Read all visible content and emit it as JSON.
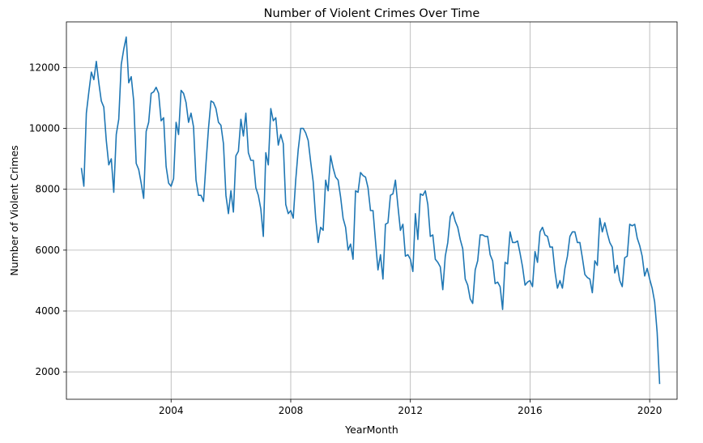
{
  "chart_data": {
    "type": "line",
    "title": "Number of Violent Crimes Over Time",
    "xlabel": "YearMonth",
    "ylabel": "Number of Violent Crimes",
    "x_ticks": [
      "2004",
      "2008",
      "2012",
      "2016",
      "2020"
    ],
    "y_ticks": [
      "2000",
      "4000",
      "6000",
      "8000",
      "10000",
      "12000"
    ],
    "xlim": [
      "2000-07",
      "2020-12"
    ],
    "ylim": [
      1100,
      13500
    ],
    "grid": true,
    "line_color": "#1f77b4",
    "series": [
      {
        "x": [
          "2001-01",
          "2001-02",
          "2001-03",
          "2001-04",
          "2001-05",
          "2001-06",
          "2001-07",
          "2001-08",
          "2001-09",
          "2001-10",
          "2001-11",
          "2001-12",
          "2002-01",
          "2002-02",
          "2002-03",
          "2002-04",
          "2002-05",
          "2002-06",
          "2002-07",
          "2002-08",
          "2002-09",
          "2002-10",
          "2002-11",
          "2002-12",
          "2003-01",
          "2003-02",
          "2003-03",
          "2003-04",
          "2003-05",
          "2003-06",
          "2003-07",
          "2003-08",
          "2003-09",
          "2003-10",
          "2003-11",
          "2003-12",
          "2004-01",
          "2004-02",
          "2004-03",
          "2004-04",
          "2004-05",
          "2004-06",
          "2004-07",
          "2004-08",
          "2004-09",
          "2004-10",
          "2004-11",
          "2004-12",
          "2005-01",
          "2005-02",
          "2005-03",
          "2005-04",
          "2005-05",
          "2005-06",
          "2005-07",
          "2005-08",
          "2005-09",
          "2005-10",
          "2005-11",
          "2005-12",
          "2006-01",
          "2006-02",
          "2006-03",
          "2006-04",
          "2006-05",
          "2006-06",
          "2006-07",
          "2006-08",
          "2006-09",
          "2006-10",
          "2006-11",
          "2006-12",
          "2007-01",
          "2007-02",
          "2007-03",
          "2007-04",
          "2007-05",
          "2007-06",
          "2007-07",
          "2007-08",
          "2007-09",
          "2007-10",
          "2007-11",
          "2007-12",
          "2008-01",
          "2008-02",
          "2008-03",
          "2008-04",
          "2008-05",
          "2008-06",
          "2008-07",
          "2008-08",
          "2008-09",
          "2008-10",
          "2008-11",
          "2008-12",
          "2009-01",
          "2009-02",
          "2009-03",
          "2009-04",
          "2009-05",
          "2009-06",
          "2009-07",
          "2009-08",
          "2009-09",
          "2009-10",
          "2009-11",
          "2009-12",
          "2010-01",
          "2010-02",
          "2010-03",
          "2010-04",
          "2010-05",
          "2010-06",
          "2010-07",
          "2010-08",
          "2010-09",
          "2010-10",
          "2010-11",
          "2010-12",
          "2011-01",
          "2011-02",
          "2011-03",
          "2011-04",
          "2011-05",
          "2011-06",
          "2011-07",
          "2011-08",
          "2011-09",
          "2011-10",
          "2011-11",
          "2011-12",
          "2012-01",
          "2012-02",
          "2012-03",
          "2012-04",
          "2012-05",
          "2012-06",
          "2012-07",
          "2012-08",
          "2012-09",
          "2012-10",
          "2012-11",
          "2012-12",
          "2013-01",
          "2013-02",
          "2013-03",
          "2013-04",
          "2013-05",
          "2013-06",
          "2013-07",
          "2013-08",
          "2013-09",
          "2013-10",
          "2013-11",
          "2013-12",
          "2014-01",
          "2014-02",
          "2014-03",
          "2014-04",
          "2014-05",
          "2014-06",
          "2014-07",
          "2014-08",
          "2014-09",
          "2014-10",
          "2014-11",
          "2014-12",
          "2015-01",
          "2015-02",
          "2015-03",
          "2015-04",
          "2015-05",
          "2015-06",
          "2015-07",
          "2015-08",
          "2015-09",
          "2015-10",
          "2015-11",
          "2015-12",
          "2016-01",
          "2016-02",
          "2016-03",
          "2016-04",
          "2016-05",
          "2016-06",
          "2016-07",
          "2016-08",
          "2016-09",
          "2016-10",
          "2016-11",
          "2016-12",
          "2017-01",
          "2017-02",
          "2017-03",
          "2017-04",
          "2017-05",
          "2017-06",
          "2017-07",
          "2017-08",
          "2017-09",
          "2017-10",
          "2017-11",
          "2017-12",
          "2018-01",
          "2018-02",
          "2018-03",
          "2018-04",
          "2018-05",
          "2018-06",
          "2018-07",
          "2018-08",
          "2018-09",
          "2018-10",
          "2018-11",
          "2018-12",
          "2019-01",
          "2019-02",
          "2019-03",
          "2019-04",
          "2019-05",
          "2019-06",
          "2019-07",
          "2019-08",
          "2019-09",
          "2019-10",
          "2019-11",
          "2019-12",
          "2020-01",
          "2020-02",
          "2020-03",
          "2020-04",
          "2020-05"
        ],
        "values": [
          8700,
          8100,
          10500,
          11200,
          11850,
          11600,
          12200,
          11500,
          10900,
          10700,
          9600,
          8800,
          9000,
          7900,
          9800,
          10300,
          12100,
          12600,
          13000,
          11500,
          11700,
          10900,
          8850,
          8650,
          8200,
          7700,
          9900,
          10200,
          11150,
          11200,
          11350,
          11150,
          10250,
          10350,
          8750,
          8200,
          8100,
          8350,
          10200,
          9800,
          11250,
          11150,
          10850,
          10200,
          10500,
          10050,
          8300,
          7800,
          7800,
          7600,
          8850,
          10000,
          10900,
          10850,
          10650,
          10200,
          10100,
          9500,
          7800,
          7200,
          7950,
          7250,
          9100,
          9250,
          10300,
          9750,
          10500,
          9200,
          8950,
          8950,
          8050,
          7800,
          7350,
          6450,
          9200,
          8800,
          10650,
          10250,
          10350,
          9450,
          9800,
          9500,
          7500,
          7200,
          7300,
          7050,
          8300,
          9300,
          10000,
          10000,
          9850,
          9600,
          8900,
          8250,
          7050,
          6250,
          6750,
          6650,
          8300,
          7950,
          9100,
          8700,
          8400,
          8300,
          7750,
          7050,
          6750,
          6000,
          6200,
          5700,
          7950,
          7900,
          8550,
          8450,
          8400,
          8050,
          7300,
          7300,
          6300,
          5350,
          5850,
          5050,
          6850,
          6900,
          7800,
          7850,
          8300,
          7450,
          6650,
          6850,
          5800,
          5850,
          5700,
          5300,
          7200,
          6350,
          7850,
          7800,
          7950,
          7500,
          6450,
          6500,
          5700,
          5600,
          5450,
          4700,
          5800,
          6250,
          7100,
          7250,
          6950,
          6750,
          6350,
          6050,
          5050,
          4850,
          4400,
          4250,
          5350,
          5650,
          6500,
          6500,
          6450,
          6450,
          5850,
          5650,
          4900,
          4950,
          4800,
          4050,
          5600,
          5550,
          6600,
          6250,
          6250,
          6300,
          5900,
          5450,
          4850,
          4950,
          5000,
          4800,
          5950,
          5600,
          6600,
          6750,
          6500,
          6450,
          6100,
          6100,
          5300,
          4750,
          5000,
          4750,
          5400,
          5800,
          6450,
          6600,
          6600,
          6250,
          6250,
          5750,
          5200,
          5100,
          5050,
          4600,
          5650,
          5500,
          7050,
          6600,
          6900,
          6550,
          6250,
          6100,
          5250,
          5500,
          5000,
          4800,
          5750,
          5800,
          6850,
          6800,
          6850,
          6400,
          6150,
          5800,
          5150,
          5400,
          5050,
          4750,
          4300,
          3300,
          1600
        ]
      }
    ]
  }
}
